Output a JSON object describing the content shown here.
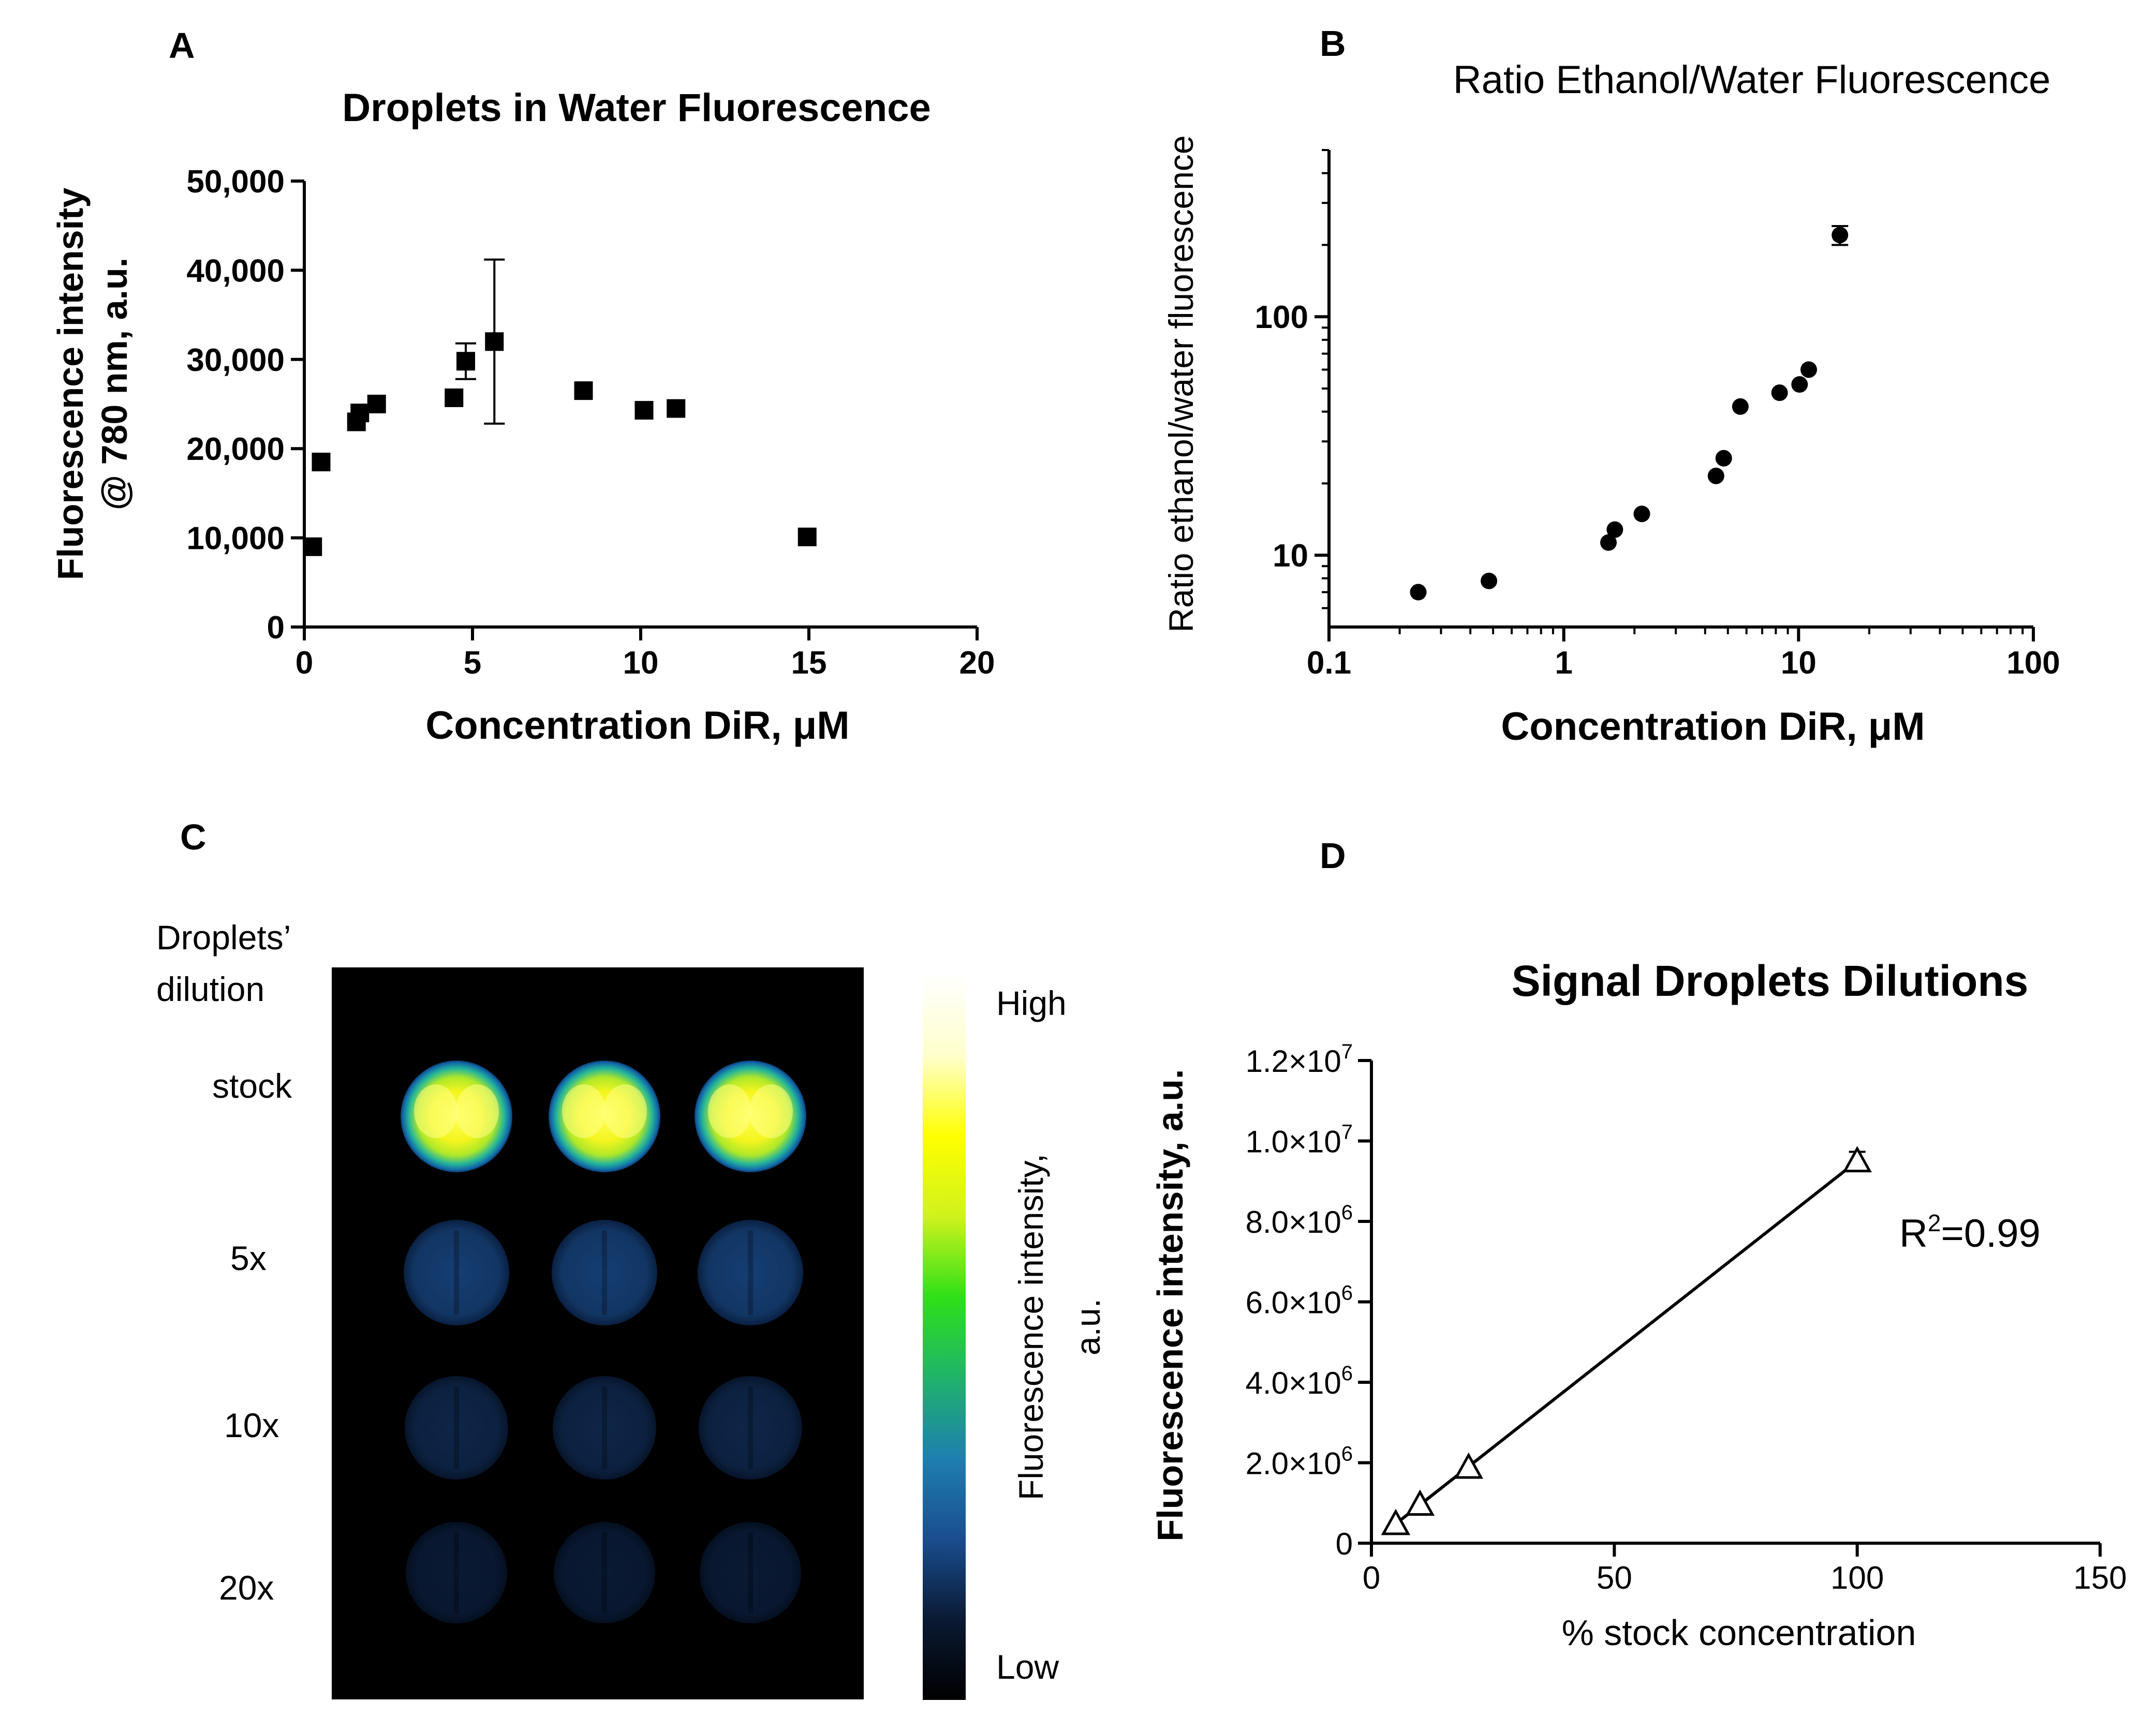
{
  "panels": {
    "A": {
      "letter": "A",
      "chart_data": {
        "type": "scatter",
        "title": "Droplets in Water Fluorescence",
        "xlabel": "Concentration DiR, μM",
        "ylabel_line1": "Fluorescence intensity",
        "ylabel_line2": "@ 780 nm, a.u.",
        "xlim": [
          0,
          20
        ],
        "ylim": [
          0,
          50000
        ],
        "x_ticks": [
          0,
          5,
          10,
          15,
          20
        ],
        "y_ticks": [
          0,
          10000,
          20000,
          30000,
          40000,
          50000
        ],
        "x_tick_labels": [
          "0",
          "5",
          "10",
          "15",
          "20"
        ],
        "y_tick_labels": [
          "0",
          "10,000",
          "20,000",
          "30,000",
          "40,000",
          "50,000"
        ],
        "marker": "square",
        "points": [
          {
            "x": 0.25,
            "y": 9000
          },
          {
            "x": 0.5,
            "y": 18500
          },
          {
            "x": 1.55,
            "y": 23000
          },
          {
            "x": 1.65,
            "y": 24000
          },
          {
            "x": 2.15,
            "y": 25000
          },
          {
            "x": 4.45,
            "y": 25700
          },
          {
            "x": 4.8,
            "y": 29800,
            "err": 2000
          },
          {
            "x": 5.65,
            "y": 32000,
            "err": 9200
          },
          {
            "x": 8.3,
            "y": 26500
          },
          {
            "x": 10.1,
            "y": 24300
          },
          {
            "x": 11.05,
            "y": 24500
          },
          {
            "x": 14.95,
            "y": 10100
          }
        ]
      }
    },
    "B": {
      "letter": "B",
      "chart_data": {
        "type": "scatter",
        "title": "Ratio Ethanol/Water Fluorescence",
        "xlabel": "Concentration DiR, μM",
        "ylabel": "Ratio ethanol/water fluorescence",
        "x_scale": "log",
        "y_scale": "log",
        "xlim": [
          0.1,
          100
        ],
        "ylim": [
          5,
          500
        ],
        "x_ticks": [
          0.1,
          1,
          10,
          100
        ],
        "y_ticks": [
          10,
          100
        ],
        "x_tick_labels": [
          "0.1",
          "1",
          "10",
          "100"
        ],
        "y_tick_labels": [
          "10",
          "100"
        ],
        "marker": "circle",
        "points": [
          {
            "x": 0.24,
            "y": 7.0
          },
          {
            "x": 0.48,
            "y": 7.8
          },
          {
            "x": 1.55,
            "y": 11.3
          },
          {
            "x": 1.65,
            "y": 12.8
          },
          {
            "x": 2.15,
            "y": 14.9
          },
          {
            "x": 4.45,
            "y": 21.5
          },
          {
            "x": 4.8,
            "y": 25.5
          },
          {
            "x": 5.65,
            "y": 42
          },
          {
            "x": 8.3,
            "y": 48
          },
          {
            "x": 10.1,
            "y": 52
          },
          {
            "x": 11.05,
            "y": 60
          },
          {
            "x": 15,
            "y": 220,
            "err_low": 200,
            "err_high": 240
          }
        ]
      }
    },
    "C": {
      "letter": "C",
      "row_header_line1": "Droplets’",
      "row_header_line2": "dilution",
      "rows": [
        "stock",
        "5x",
        "10x",
        "20x"
      ],
      "colorbar": {
        "high": "High",
        "low": "Low",
        "label_line1": "Fluorescence intensity,",
        "label_line2": "a.u.",
        "colors": [
          "#000000",
          "#0a1a33",
          "#1a4d8f",
          "#1e7fb0",
          "#1fb36b",
          "#2ee018",
          "#cff21d",
          "#ffff00",
          "#ffffcc",
          "#ffffff"
        ]
      }
    },
    "D": {
      "letter": "D",
      "chart_data": {
        "type": "scatter",
        "title": "Signal Droplets Dilutions",
        "xlabel": "% stock concentration",
        "ylabel": "Fluorescence intensity, a.u.",
        "xlim": [
          0,
          150
        ],
        "ylim": [
          0,
          12000000
        ],
        "x_ticks": [
          0,
          50,
          100,
          150
        ],
        "x_tick_labels": [
          "0",
          "50",
          "100",
          "150"
        ],
        "y_ticks": [
          0,
          2000000,
          4000000,
          6000000,
          8000000,
          10000000,
          12000000
        ],
        "y_tick_labels": [
          {
            "mant": "0",
            "exp": ""
          },
          {
            "mant": "2.0×10",
            "exp": "6"
          },
          {
            "mant": "4.0×10",
            "exp": "6"
          },
          {
            "mant": "6.0×10",
            "exp": "6"
          },
          {
            "mant": "8.0×10",
            "exp": "6"
          },
          {
            "mant": "1.0×10",
            "exp": "7"
          },
          {
            "mant": "1.2×10",
            "exp": "7"
          }
        ],
        "marker": "triangle-open",
        "points": [
          {
            "x": 5,
            "y": 480000
          },
          {
            "x": 10,
            "y": 960000
          },
          {
            "x": 20,
            "y": 1880000
          },
          {
            "x": 100,
            "y": 9500000,
            "err": 230000
          }
        ],
        "fit_line": {
          "x": [
            5,
            100
          ],
          "y": [
            480000,
            9500000
          ]
        },
        "annotation": {
          "base": "R",
          "sup": "2",
          "rest": "=0.99"
        }
      }
    }
  }
}
